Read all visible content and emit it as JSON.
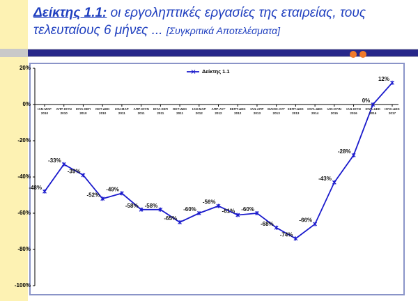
{
  "header": {
    "title_label": "Δείκτης 1.1:",
    "title_text": "οι εργοληπτικές εργασίες της εταιρείας, τους τελευταίους 6 μήνες ...",
    "subtitle": "[Συγκριτικά Αποτελέσματα]"
  },
  "chart_data": {
    "type": "line",
    "categories": [
      "ΙΑΝ-ΜΑΡ 2010",
      "ΑΠΡ-ΙΟΥΝ 2010",
      "ΙΟΥΛ-ΣΕΠ 2010",
      "ΟΚΤ-ΔΕΚ 2010",
      "ΙΑΝ-ΜΑΡ 2011",
      "ΑΠΡ-ΙΟΥΝ 2011",
      "ΙΟΥΛ-ΣΕΠ 2011",
      "ΟΚΤ-ΔΕΚ 2011",
      "ΙΑΝ-ΜΑΡ 2012",
      "ΑΠΡ-ΑΥΓ 2012",
      "ΣΕΠΤ-ΔΕΚ 2012",
      "ΙΑΝ-ΑΠΡ 2013",
      "ΜΑΙΟΣ-ΑΥΓ 2013",
      "ΣΕΠΤ-ΔΕΚ 2013",
      "ΙΟΥΛ-ΔΕΚ 2014",
      "ΙΑΝ-ΙΟΥΝ 2015",
      "ΙΑΝ-ΙΟΥΝ 2016",
      "ΙΟΥΛ-ΔΕΚ 2016",
      "ΙΟΥΛ-ΔΕΚ 2017"
    ],
    "series": [
      {
        "name": "Δείκτης 1.1",
        "color": "#1a1acc",
        "values": [
          -48,
          -33,
          -39,
          -52,
          -49,
          -58,
          -58,
          -65,
          -60,
          -56,
          -61,
          -60,
          -68,
          -74,
          -66,
          -43,
          -28,
          0,
          12
        ],
        "value_labels": [
          "-48%",
          "-33%",
          "-39%",
          "-52%",
          "-49%",
          "-58%",
          "-58%",
          "-65%",
          "-60%",
          "-56%",
          "-61%",
          "-60%",
          "-68%",
          "-74%",
          "-66%",
          "-43%",
          "-28%",
          "0%",
          "12%"
        ]
      }
    ],
    "ylim": [
      -100,
      20
    ],
    "yticks": [
      {
        "value": -100,
        "label": "-100%"
      },
      {
        "value": -80,
        "label": "-80%"
      },
      {
        "value": -60,
        "label": "-60%"
      },
      {
        "value": -40,
        "label": "-40%"
      },
      {
        "value": -20,
        "label": "-20%"
      },
      {
        "value": 0,
        "label": "0%"
      },
      {
        "value": 20,
        "label": "20%"
      }
    ],
    "grid": false,
    "legend": "top"
  }
}
